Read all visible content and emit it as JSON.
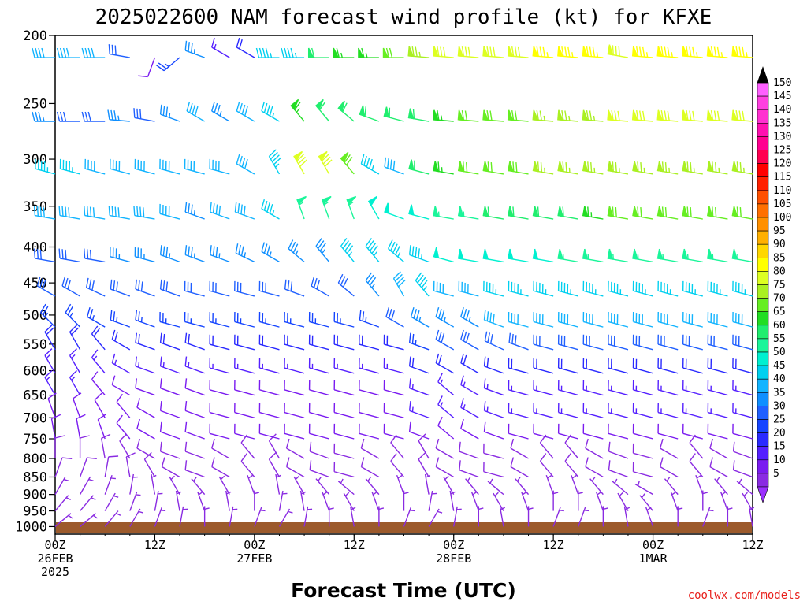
{
  "chart_data": {
    "type": "wind_barb_profile",
    "title": "2025022600 NAM forecast wind profile (kt) for KFXE",
    "xlabel": "Forecast Time (UTC)",
    "credit": "coolwx.com/models",
    "y_ticks": [
      200,
      250,
      300,
      350,
      400,
      450,
      500,
      550,
      600,
      650,
      700,
      750,
      800,
      850,
      900,
      950,
      1000
    ],
    "ylim": [
      200,
      1025
    ],
    "y_scale": "log-pressure",
    "x_ticks": [
      {
        "hour": 0,
        "lines": [
          "00Z",
          "26FEB",
          "2025"
        ]
      },
      {
        "hour": 12,
        "lines": [
          "12Z"
        ]
      },
      {
        "hour": 24,
        "lines": [
          "00Z",
          "27FEB"
        ]
      },
      {
        "hour": 36,
        "lines": [
          "12Z"
        ]
      },
      {
        "hour": 48,
        "lines": [
          "00Z",
          "28FEB"
        ]
      },
      {
        "hour": 60,
        "lines": [
          "12Z"
        ]
      },
      {
        "hour": 72,
        "lines": [
          "00Z",
          "1MAR"
        ]
      },
      {
        "hour": 84,
        "lines": [
          "12Z"
        ]
      }
    ],
    "xlim": [
      0,
      84
    ],
    "time_step_hours": 3,
    "forecast_hours": [
      0,
      3,
      6,
      9,
      12,
      15,
      18,
      21,
      24,
      27,
      30,
      33,
      36,
      39,
      42,
      45,
      48,
      51,
      54,
      57,
      60,
      63,
      66,
      69,
      72,
      75,
      78,
      81,
      84
    ],
    "colorbar": {
      "levels": [
        5,
        10,
        15,
        20,
        25,
        30,
        35,
        40,
        45,
        50,
        55,
        60,
        65,
        70,
        75,
        80,
        85,
        90,
        95,
        100,
        105,
        110,
        115,
        120,
        125,
        130,
        135,
        140,
        145,
        150
      ],
      "colors": [
        "#8a2be2",
        "#7a1bf0",
        "#5520ff",
        "#2a2aff",
        "#1545ff",
        "#2060ff",
        "#0f8fff",
        "#12b4ff",
        "#00d0f0",
        "#00f0d0",
        "#1bf59a",
        "#20ee6e",
        "#22dd22",
        "#66ee22",
        "#aaf022",
        "#ddff22",
        "#ffff00",
        "#ffd700",
        "#ffb000",
        "#ff9000",
        "#ff7000",
        "#ff5000",
        "#ff2000",
        "#ff0000",
        "#ff0050",
        "#ff0090",
        "#ff10b0",
        "#ff30d0",
        "#ff40e0",
        "#ff60ff"
      ],
      "min_arrow_color": "#9b30ff",
      "max_arrow_color": "#000000"
    },
    "wind_levels": [
      {
        "p": 215,
        "speeds": [
          40,
          40,
          40,
          30,
          10,
          25,
          35,
          15,
          20,
          45,
          45,
          60,
          65,
          65,
          70,
          75,
          80,
          80,
          80,
          80,
          85,
          85,
          85,
          80,
          85,
          85,
          85,
          85,
          85
        ],
        "dirs": [
          270,
          270,
          270,
          280,
          200,
          230,
          290,
          300,
          300,
          270,
          270,
          270,
          270,
          270,
          270,
          275,
          275,
          275,
          275,
          275,
          275,
          275,
          275,
          280,
          275,
          275,
          275,
          275,
          275
        ]
      },
      {
        "p": 265,
        "speeds": [
          35,
          30,
          30,
          35,
          30,
          35,
          40,
          35,
          40,
          45,
          65,
          60,
          60,
          60,
          60,
          60,
          65,
          70,
          70,
          70,
          75,
          75,
          75,
          80,
          80,
          80,
          80,
          80,
          80
        ],
        "dirs": [
          270,
          270,
          270,
          275,
          280,
          290,
          300,
          300,
          300,
          300,
          320,
          320,
          310,
          290,
          285,
          280,
          275,
          275,
          275,
          275,
          275,
          275,
          275,
          275,
          275,
          275,
          275,
          275,
          275
        ]
      },
      {
        "p": 315,
        "speeds": [
          45,
          45,
          40,
          40,
          40,
          40,
          40,
          40,
          40,
          45,
          80,
          80,
          70,
          45,
          40,
          60,
          65,
          70,
          70,
          70,
          75,
          75,
          75,
          75,
          75,
          75,
          75,
          75,
          75
        ],
        "dirs": [
          285,
          285,
          285,
          285,
          285,
          285,
          285,
          285,
          300,
          330,
          330,
          330,
          320,
          300,
          290,
          285,
          280,
          280,
          280,
          280,
          280,
          280,
          280,
          280,
          280,
          280,
          280,
          280,
          280
        ]
      },
      {
        "p": 365,
        "speeds": [
          40,
          40,
          40,
          40,
          40,
          40,
          35,
          40,
          40,
          45,
          55,
          55,
          55,
          50,
          50,
          50,
          55,
          55,
          60,
          60,
          60,
          60,
          65,
          70,
          70,
          70,
          70,
          70,
          70
        ],
        "dirs": [
          280,
          280,
          280,
          280,
          280,
          285,
          290,
          290,
          290,
          300,
          340,
          340,
          340,
          330,
          290,
          285,
          280,
          280,
          280,
          280,
          280,
          280,
          280,
          280,
          280,
          280,
          280,
          280,
          280
        ]
      },
      {
        "p": 420,
        "speeds": [
          30,
          30,
          30,
          35,
          35,
          35,
          35,
          35,
          35,
          35,
          35,
          35,
          45,
          45,
          45,
          45,
          50,
          50,
          50,
          50,
          50,
          55,
          55,
          55,
          55,
          55,
          55,
          55,
          55
        ],
        "dirs": [
          280,
          280,
          280,
          285,
          285,
          290,
          290,
          290,
          295,
          300,
          310,
          320,
          320,
          320,
          310,
          290,
          285,
          280,
          280,
          280,
          280,
          280,
          280,
          280,
          280,
          280,
          280,
          280,
          280
        ]
      },
      {
        "p": 470,
        "speeds": [
          30,
          30,
          30,
          30,
          30,
          30,
          30,
          30,
          30,
          30,
          30,
          30,
          30,
          35,
          40,
          45,
          40,
          40,
          45,
          45,
          45,
          45,
          45,
          45,
          45,
          45,
          45,
          45,
          45
        ],
        "dirs": [
          300,
          300,
          295,
          290,
          290,
          290,
          285,
          285,
          285,
          285,
          290,
          300,
          310,
          320,
          330,
          320,
          285,
          285,
          285,
          285,
          285,
          285,
          285,
          285,
          285,
          285,
          285,
          285,
          285
        ]
      },
      {
        "p": 520,
        "speeds": [
          25,
          25,
          25,
          25,
          25,
          25,
          25,
          25,
          25,
          25,
          25,
          25,
          25,
          25,
          30,
          35,
          35,
          35,
          40,
          40,
          40,
          40,
          40,
          40,
          40,
          40,
          40,
          40,
          40
        ],
        "dirs": [
          315,
          315,
          300,
          290,
          290,
          285,
          285,
          285,
          285,
          285,
          285,
          285,
          285,
          290,
          300,
          300,
          300,
          300,
          290,
          285,
          285,
          285,
          285,
          285,
          285,
          285,
          285,
          285,
          285
        ]
      },
      {
        "p": 560,
        "speeds": [
          20,
          20,
          20,
          20,
          20,
          20,
          20,
          20,
          20,
          20,
          20,
          20,
          20,
          20,
          20,
          25,
          30,
          30,
          30,
          30,
          30,
          30,
          30,
          30,
          30,
          30,
          30,
          30,
          30
        ],
        "dirs": [
          330,
          330,
          320,
          300,
          290,
          290,
          290,
          285,
          285,
          285,
          285,
          285,
          285,
          285,
          285,
          290,
          300,
          300,
          295,
          290,
          285,
          285,
          285,
          285,
          285,
          285,
          285,
          285,
          285
        ]
      },
      {
        "p": 605,
        "speeds": [
          15,
          15,
          15,
          15,
          15,
          15,
          15,
          15,
          15,
          15,
          15,
          15,
          15,
          15,
          15,
          20,
          20,
          20,
          20,
          20,
          20,
          20,
          20,
          20,
          20,
          20,
          20,
          20,
          20
        ],
        "dirs": [
          330,
          330,
          320,
          300,
          290,
          290,
          290,
          285,
          285,
          285,
          285,
          285,
          285,
          285,
          285,
          290,
          300,
          300,
          290,
          285,
          285,
          285,
          285,
          285,
          285,
          285,
          285,
          285,
          285
        ]
      },
      {
        "p": 650,
        "speeds": [
          15,
          15,
          12,
          12,
          12,
          12,
          12,
          12,
          12,
          12,
          12,
          12,
          12,
          12,
          12,
          15,
          15,
          15,
          15,
          15,
          15,
          15,
          15,
          15,
          15,
          15,
          15,
          15,
          15
        ],
        "dirs": [
          330,
          330,
          320,
          300,
          290,
          290,
          290,
          285,
          285,
          285,
          285,
          285,
          285,
          285,
          285,
          290,
          310,
          300,
          290,
          285,
          285,
          285,
          285,
          285,
          285,
          285,
          285,
          285,
          285
        ]
      },
      {
        "p": 700,
        "speeds": [
          10,
          10,
          10,
          10,
          10,
          10,
          10,
          10,
          10,
          10,
          10,
          10,
          10,
          10,
          10,
          15,
          15,
          15,
          15,
          15,
          15,
          15,
          15,
          15,
          15,
          15,
          15,
          15,
          15
        ],
        "dirs": [
          340,
          340,
          330,
          320,
          300,
          290,
          290,
          285,
          285,
          285,
          285,
          285,
          285,
          285,
          285,
          290,
          310,
          300,
          290,
          285,
          285,
          285,
          285,
          285,
          285,
          285,
          285,
          285,
          285
        ]
      },
      {
        "p": 750,
        "speeds": [
          10,
          10,
          10,
          10,
          10,
          10,
          10,
          10,
          10,
          10,
          10,
          10,
          10,
          10,
          10,
          10,
          10,
          10,
          10,
          10,
          10,
          10,
          10,
          10,
          10,
          10,
          10,
          10,
          10
        ],
        "dirs": [
          350,
          350,
          340,
          320,
          300,
          290,
          290,
          285,
          285,
          285,
          285,
          285,
          285,
          285,
          285,
          290,
          310,
          300,
          290,
          285,
          285,
          285,
          285,
          285,
          285,
          285,
          285,
          285,
          285
        ]
      },
      {
        "p": 800,
        "speeds": [
          8,
          8,
          8,
          8,
          8,
          8,
          8,
          8,
          8,
          8,
          8,
          8,
          8,
          8,
          8,
          8,
          8,
          8,
          8,
          8,
          8,
          8,
          8,
          8,
          8,
          8,
          8,
          8,
          8
        ],
        "dirs": [
          360,
          360,
          350,
          330,
          300,
          290,
          290,
          300,
          320,
          330,
          300,
          290,
          285,
          300,
          320,
          330,
          300,
          290,
          285,
          300,
          320,
          320,
          300,
          290,
          285,
          300,
          320,
          300,
          290
        ]
      },
      {
        "p": 850,
        "speeds": [
          8,
          8,
          8,
          8,
          8,
          8,
          8,
          8,
          8,
          8,
          8,
          8,
          8,
          8,
          8,
          8,
          8,
          8,
          8,
          8,
          8,
          8,
          8,
          8,
          8,
          8,
          8,
          8,
          8
        ],
        "dirs": [
          20,
          20,
          10,
          350,
          330,
          300,
          290,
          300,
          320,
          330,
          300,
          290,
          285,
          300,
          320,
          330,
          300,
          290,
          285,
          300,
          320,
          320,
          300,
          290,
          285,
          300,
          320,
          300,
          290
        ]
      },
      {
        "p": 900,
        "speeds": [
          5,
          5,
          5,
          5,
          5,
          5,
          5,
          5,
          5,
          5,
          5,
          5,
          5,
          5,
          5,
          5,
          5,
          5,
          5,
          5,
          5,
          5,
          5,
          5,
          5,
          5,
          5,
          5,
          5
        ],
        "dirs": [
          30,
          30,
          20,
          10,
          350,
          330,
          320,
          330,
          340,
          350,
          330,
          320,
          310,
          320,
          340,
          350,
          330,
          320,
          310,
          320,
          340,
          340,
          320,
          310,
          300,
          320,
          340,
          320,
          310
        ]
      },
      {
        "p": 950,
        "speeds": [
          5,
          5,
          5,
          5,
          5,
          5,
          5,
          5,
          5,
          5,
          5,
          5,
          5,
          5,
          5,
          5,
          5,
          5,
          5,
          5,
          5,
          5,
          5,
          5,
          5,
          5,
          5,
          5,
          5
        ],
        "dirs": [
          40,
          40,
          30,
          20,
          10,
          350,
          340,
          350,
          360,
          10,
          350,
          340,
          330,
          340,
          360,
          10,
          350,
          340,
          330,
          340,
          360,
          360,
          340,
          330,
          320,
          340,
          360,
          340,
          330
        ]
      },
      {
        "p": 1000,
        "speeds": [
          5,
          5,
          5,
          5,
          5,
          5,
          5,
          5,
          5,
          5,
          5,
          5,
          5,
          5,
          5,
          5,
          5,
          5,
          5,
          5,
          5,
          5,
          5,
          5,
          5,
          5,
          5,
          5,
          5
        ],
        "dirs": [
          50,
          50,
          40,
          30,
          20,
          10,
          360,
          10,
          20,
          30,
          10,
          360,
          350,
          360,
          20,
          30,
          10,
          360,
          350,
          360,
          20,
          20,
          360,
          350,
          340,
          360,
          20,
          360,
          350
        ]
      }
    ]
  }
}
